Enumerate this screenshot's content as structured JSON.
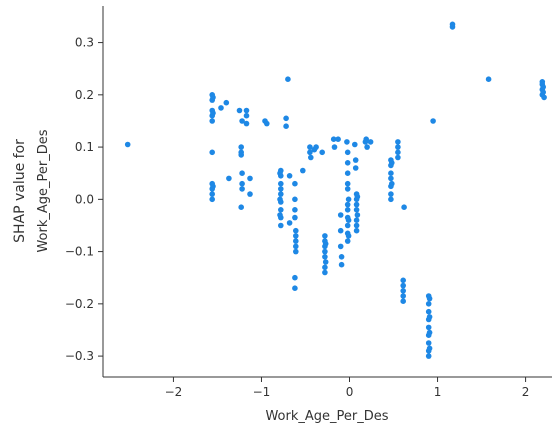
{
  "chart_data": {
    "type": "scatter",
    "xlabel": "Work_Age_Per_Des",
    "ylabel_line1": "SHAP value for",
    "ylabel_line2": "Work_Age_Per_Des",
    "xlim": [
      -2.8,
      2.3
    ],
    "ylim": [
      -0.34,
      0.37
    ],
    "x_ticks": [
      -2,
      -1,
      0,
      1,
      2
    ],
    "x_tick_labels": [
      "−2",
      "−1",
      "0",
      "1",
      "2"
    ],
    "y_ticks": [
      -0.3,
      -0.2,
      -0.1,
      0.0,
      0.1,
      0.2,
      0.3
    ],
    "y_tick_labels": [
      "−0.3",
      "−0.2",
      "−0.1",
      "0.0",
      "0.1",
      "0.2",
      "0.3"
    ],
    "grid": false,
    "point_color": "#1e88e5",
    "points": [
      [
        -2.52,
        0.105
      ],
      [
        -1.56,
        0.2
      ],
      [
        -1.56,
        0.19
      ],
      [
        -1.56,
        0.17
      ],
      [
        -1.56,
        0.16
      ],
      [
        -1.56,
        0.15
      ],
      [
        -1.56,
        0.09
      ],
      [
        -1.56,
        0.03
      ],
      [
        -1.56,
        0.02
      ],
      [
        -1.56,
        0.01
      ],
      [
        -1.56,
        0.0
      ],
      [
        -1.55,
        0.195
      ],
      [
        -1.55,
        0.165
      ],
      [
        -1.55,
        0.025
      ],
      [
        -1.46,
        0.175
      ],
      [
        -1.4,
        0.185
      ],
      [
        -1.37,
        0.04
      ],
      [
        -1.25,
        0.17
      ],
      [
        -1.22,
        0.15
      ],
      [
        -1.23,
        0.1
      ],
      [
        -1.23,
        0.09
      ],
      [
        -1.23,
        0.085
      ],
      [
        -1.22,
        0.05
      ],
      [
        -1.22,
        0.03
      ],
      [
        -1.22,
        0.02
      ],
      [
        -1.23,
        -0.015
      ],
      [
        -1.17,
        0.17
      ],
      [
        -1.17,
        0.16
      ],
      [
        -1.17,
        0.145
      ],
      [
        -1.13,
        0.04
      ],
      [
        -1.13,
        0.01
      ],
      [
        -0.96,
        0.15
      ],
      [
        -0.94,
        0.145
      ],
      [
        -0.78,
        0.055
      ],
      [
        -0.78,
        0.045
      ],
      [
        -0.78,
        0.03
      ],
      [
        -0.78,
        0.02
      ],
      [
        -0.78,
        0.01
      ],
      [
        -0.78,
        -0.005
      ],
      [
        -0.78,
        -0.02
      ],
      [
        -0.78,
        -0.035
      ],
      [
        -0.78,
        -0.05
      ],
      [
        -0.79,
        0.05
      ],
      [
        -0.79,
        0.0
      ],
      [
        -0.79,
        -0.03
      ],
      [
        -0.72,
        0.155
      ],
      [
        -0.72,
        0.14
      ],
      [
        -0.7,
        0.23
      ],
      [
        -0.68,
        0.045
      ],
      [
        -0.68,
        -0.045
      ],
      [
        -0.62,
        0.03
      ],
      [
        -0.62,
        0.0
      ],
      [
        -0.62,
        -0.02
      ],
      [
        -0.62,
        -0.035
      ],
      [
        -0.61,
        -0.06
      ],
      [
        -0.61,
        -0.07
      ],
      [
        -0.61,
        -0.08
      ],
      [
        -0.61,
        -0.09
      ],
      [
        -0.61,
        -0.1
      ],
      [
        -0.62,
        -0.15
      ],
      [
        -0.62,
        -0.17
      ],
      [
        -0.53,
        0.055
      ],
      [
        -0.45,
        0.1
      ],
      [
        -0.45,
        0.09
      ],
      [
        -0.44,
        0.08
      ],
      [
        -0.4,
        0.095
      ],
      [
        -0.38,
        0.1
      ],
      [
        -0.28,
        -0.07
      ],
      [
        -0.28,
        -0.08
      ],
      [
        -0.28,
        -0.09
      ],
      [
        -0.28,
        -0.1
      ],
      [
        -0.28,
        -0.11
      ],
      [
        -0.28,
        -0.13
      ],
      [
        -0.28,
        -0.14
      ],
      [
        -0.27,
        -0.085
      ],
      [
        -0.27,
        -0.12
      ],
      [
        -0.31,
        0.09
      ],
      [
        -0.18,
        0.115
      ],
      [
        -0.17,
        0.1
      ],
      [
        -0.13,
        0.115
      ],
      [
        -0.1,
        -0.03
      ],
      [
        -0.1,
        -0.06
      ],
      [
        -0.1,
        -0.09
      ],
      [
        -0.09,
        -0.11
      ],
      [
        -0.09,
        -0.125
      ],
      [
        -0.03,
        0.11
      ],
      [
        -0.02,
        0.09
      ],
      [
        -0.02,
        0.07
      ],
      [
        -0.02,
        0.05
      ],
      [
        -0.02,
        0.03
      ],
      [
        -0.02,
        0.02
      ],
      [
        -0.02,
        -0.01
      ],
      [
        -0.02,
        -0.02
      ],
      [
        -0.02,
        -0.035
      ],
      [
        -0.02,
        -0.05
      ],
      [
        -0.02,
        -0.065
      ],
      [
        -0.02,
        -0.08
      ],
      [
        -0.01,
        0.0
      ],
      [
        -0.01,
        -0.04
      ],
      [
        -0.01,
        -0.07
      ],
      [
        0.06,
        0.105
      ],
      [
        0.07,
        0.075
      ],
      [
        0.07,
        0.06
      ],
      [
        0.08,
        0.01
      ],
      [
        0.08,
        0.0
      ],
      [
        0.08,
        -0.01
      ],
      [
        0.08,
        -0.02
      ],
      [
        0.08,
        -0.04
      ],
      [
        0.08,
        -0.05
      ],
      [
        0.08,
        -0.06
      ],
      [
        0.09,
        0.005
      ],
      [
        0.09,
        -0.03
      ],
      [
        0.18,
        0.11
      ],
      [
        0.19,
        0.115
      ],
      [
        0.2,
        0.1
      ],
      [
        0.24,
        0.11
      ],
      [
        0.47,
        0.075
      ],
      [
        0.47,
        0.065
      ],
      [
        0.47,
        0.05
      ],
      [
        0.47,
        0.04
      ],
      [
        0.47,
        0.025
      ],
      [
        0.47,
        0.01
      ],
      [
        0.47,
        0.0
      ],
      [
        0.48,
        0.07
      ],
      [
        0.48,
        0.03
      ],
      [
        0.55,
        0.11
      ],
      [
        0.55,
        0.1
      ],
      [
        0.55,
        0.09
      ],
      [
        0.55,
        0.08
      ],
      [
        0.62,
        -0.015
      ],
      [
        0.61,
        -0.155
      ],
      [
        0.61,
        -0.165
      ],
      [
        0.61,
        -0.175
      ],
      [
        0.61,
        -0.185
      ],
      [
        0.61,
        -0.195
      ],
      [
        0.9,
        -0.185
      ],
      [
        0.9,
        -0.2
      ],
      [
        0.9,
        -0.215
      ],
      [
        0.9,
        -0.23
      ],
      [
        0.9,
        -0.245
      ],
      [
        0.9,
        -0.26
      ],
      [
        0.9,
        -0.275
      ],
      [
        0.9,
        -0.29
      ],
      [
        0.9,
        -0.3
      ],
      [
        0.91,
        -0.19
      ],
      [
        0.91,
        -0.225
      ],
      [
        0.91,
        -0.255
      ],
      [
        0.91,
        -0.285
      ],
      [
        0.95,
        0.15
      ],
      [
        1.17,
        0.335
      ],
      [
        1.17,
        0.33
      ],
      [
        1.58,
        0.23
      ],
      [
        2.19,
        0.225
      ],
      [
        2.19,
        0.22
      ],
      [
        2.19,
        0.21
      ],
      [
        2.19,
        0.2
      ],
      [
        2.2,
        0.215
      ],
      [
        2.2,
        0.205
      ],
      [
        2.21,
        0.195
      ]
    ]
  }
}
